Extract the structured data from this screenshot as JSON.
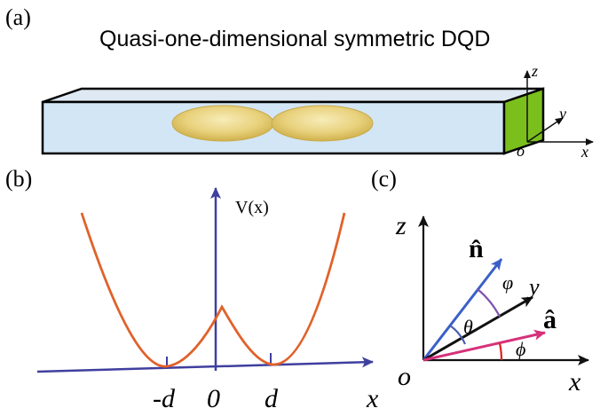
{
  "panel_a": {
    "label": "(a)",
    "title": "Quasi-one-dimensional symmetric DQD",
    "axes": {
      "z": "z",
      "y": "y",
      "x": "x",
      "origin": "o"
    }
  },
  "panel_b": {
    "label": "(b)",
    "y_axis_label": "V(x)",
    "x_axis_label": "x",
    "tick_labels": {
      "minus_d": "-d",
      "zero": "0",
      "d": "d"
    },
    "colors": {
      "axis": "#3f3f9f",
      "curve": "#e0622a"
    }
  },
  "panel_c": {
    "label": "(c)",
    "axes": {
      "z": "z",
      "y": "y",
      "x": "x",
      "origin": "o"
    },
    "vectors": {
      "n_hat": "n̂",
      "a_hat": "â"
    },
    "angles": {
      "theta": "θ",
      "varphi": "φ",
      "phi": "ϕ"
    },
    "colors": {
      "n_vector": "#3a5fc8",
      "a_vector": "#d6307a",
      "y_vector": "#111111",
      "theta_arc": "#4a5fb0",
      "varphi_arc": "#7a52b0",
      "phi_arc": "#e02020"
    }
  }
}
